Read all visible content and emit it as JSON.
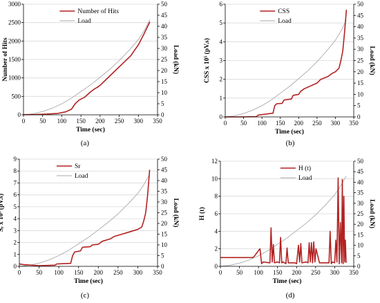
{
  "chart_data": [
    {
      "type": "line",
      "panel_label": "(a)",
      "xlabel": "Time (sec)",
      "ylabel": "Number of Hits",
      "ylabel2": "Load (kN)",
      "xlim": [
        0,
        350
      ],
      "ylim": [
        0,
        3000
      ],
      "ylim2": [
        0,
        50
      ],
      "xticks": [
        0,
        50,
        100,
        150,
        200,
        250,
        300,
        350
      ],
      "yticks": [
        0,
        500,
        1000,
        1500,
        2000,
        2500,
        3000
      ],
      "y2ticks": [
        0,
        5,
        10,
        15,
        20,
        25,
        30,
        35,
        40,
        45,
        50
      ],
      "legend_position": "top-left",
      "series": [
        {
          "name": "Number of Hits",
          "color": "#b22222",
          "axis": "left",
          "x": [
            0,
            30,
            60,
            90,
            110,
            125,
            135,
            145,
            160,
            175,
            185,
            195,
            200,
            210,
            225,
            240,
            260,
            280,
            300,
            315,
            330
          ],
          "y": [
            5,
            10,
            20,
            40,
            80,
            150,
            300,
            400,
            480,
            620,
            700,
            760,
            800,
            900,
            1050,
            1200,
            1400,
            1600,
            1900,
            2200,
            2520
          ]
        },
        {
          "name": "Load",
          "color": "#aaaaaa",
          "axis": "right",
          "x": [
            0,
            25,
            50,
            75,
            100,
            125,
            150,
            175,
            200,
            225,
            250,
            275,
            300,
            315,
            330
          ],
          "y": [
            0,
            0.5,
            1.5,
            3,
            5,
            7.5,
            10.5,
            13.5,
            17,
            20.5,
            24.5,
            29,
            34,
            38,
            43
          ]
        }
      ]
    },
    {
      "type": "line",
      "panel_label": "(b)",
      "xlabel": "Time (sec)",
      "ylabel": "CSS x 10⁵ (pV.s)",
      "ylabel2": "Load (kN)",
      "xlim": [
        0,
        350
      ],
      "ylim": [
        0,
        6
      ],
      "ylim2": [
        0,
        50
      ],
      "xticks": [
        0,
        50,
        100,
        150,
        200,
        250,
        300,
        350
      ],
      "yticks": [
        0,
        1,
        2,
        3,
        4,
        5,
        6
      ],
      "y2ticks": [
        0,
        5,
        10,
        15,
        20,
        25,
        30,
        35,
        40,
        45,
        50
      ],
      "legend_position": "top-left",
      "series": [
        {
          "name": "CSS",
          "color": "#b22222",
          "axis": "left",
          "x": [
            0,
            50,
            85,
            90,
            130,
            135,
            140,
            155,
            160,
            180,
            185,
            200,
            205,
            215,
            250,
            260,
            280,
            290,
            300,
            310,
            315,
            320,
            325,
            330
          ],
          "y": [
            0,
            0,
            0.02,
            0.1,
            0.2,
            0.6,
            0.7,
            0.72,
            0.9,
            0.95,
            1.15,
            1.2,
            1.35,
            1.5,
            1.8,
            2.0,
            2.15,
            2.3,
            2.4,
            2.6,
            3.0,
            3.5,
            4.5,
            5.7
          ]
        },
        {
          "name": "Load",
          "color": "#aaaaaa",
          "axis": "right",
          "x": [
            0,
            25,
            50,
            75,
            100,
            125,
            150,
            175,
            200,
            225,
            250,
            275,
            300,
            315,
            330
          ],
          "y": [
            0,
            0.5,
            1.5,
            3,
            5,
            7.5,
            10.5,
            13.5,
            17,
            20.5,
            24.5,
            29,
            34,
            38,
            43
          ]
        }
      ]
    },
    {
      "type": "line",
      "panel_label": "(c)",
      "xlabel": "Time (sec)",
      "ylabel": "Sᵣ x 10⁵ (pV.s)",
      "ylabel2": "Load (kN)",
      "xlim": [
        0,
        350
      ],
      "ylim": [
        0,
        9
      ],
      "ylim2": [
        0,
        50
      ],
      "xticks": [
        0,
        50,
        100,
        150,
        200,
        250,
        300,
        350
      ],
      "yticks": [
        0,
        1,
        2,
        3,
        4,
        5,
        6,
        7,
        8,
        9
      ],
      "y2ticks": [
        0,
        5,
        10,
        15,
        20,
        25,
        30,
        35,
        40,
        45,
        50
      ],
      "legend_position": "top-left",
      "series": [
        {
          "name": "Sr",
          "color": "#b22222",
          "axis": "left",
          "x": [
            0,
            10,
            30,
            50,
            90,
            95,
            130,
            135,
            140,
            155,
            160,
            180,
            185,
            200,
            210,
            230,
            240,
            260,
            270,
            290,
            300,
            310,
            315,
            320,
            325,
            330
          ],
          "y": [
            0.2,
            0.15,
            0.1,
            0.05,
            0.1,
            0.2,
            0.25,
            0.9,
            1.2,
            1.3,
            1.6,
            1.65,
            1.8,
            1.85,
            2.1,
            2.3,
            2.5,
            2.7,
            2.8,
            3.0,
            3.1,
            3.3,
            3.8,
            4.5,
            6.0,
            8.1
          ]
        },
        {
          "name": "Load",
          "color": "#aaaaaa",
          "axis": "right",
          "x": [
            0,
            25,
            50,
            75,
            100,
            125,
            150,
            175,
            200,
            225,
            250,
            275,
            300,
            315,
            330
          ],
          "y": [
            0,
            0.5,
            1.5,
            3,
            5,
            7.5,
            10.5,
            13.5,
            17,
            20.5,
            24.5,
            29,
            34,
            38,
            43
          ]
        }
      ]
    },
    {
      "type": "line",
      "panel_label": "(d)",
      "xlabel": "Time (sec)",
      "ylabel": "H (t)",
      "ylabel2": "Load (kN)",
      "xlim": [
        0,
        350
      ],
      "ylim": [
        0,
        12
      ],
      "ylim2": [
        0,
        50
      ],
      "xticks": [
        0,
        50,
        100,
        150,
        200,
        250,
        300,
        350
      ],
      "yticks": [
        0,
        2,
        4,
        6,
        8,
        10,
        12
      ],
      "y2ticks": [
        0,
        5,
        10,
        15,
        20,
        25,
        30,
        35,
        40,
        45,
        50
      ],
      "legend_position": "top-right",
      "series": [
        {
          "name": "H (t)",
          "color": "#b22222",
          "axis": "left",
          "x": [
            0,
            85,
            90,
            95,
            100,
            104,
            108,
            112,
            130,
            133,
            136,
            139,
            142,
            150,
            155,
            158,
            161,
            165,
            172,
            175,
            178,
            195,
            200,
            205,
            208,
            211,
            214,
            225,
            230,
            233,
            236,
            239,
            242,
            245,
            248,
            251,
            260,
            285,
            288,
            291,
            294,
            300,
            303,
            306,
            309,
            312,
            315,
            318,
            320,
            322,
            324,
            326,
            328,
            330
          ],
          "y": [
            1,
            1,
            1.2,
            1.5,
            1.8,
            2.0,
            0.3,
            0.5,
            0.4,
            4.4,
            0.5,
            2.5,
            0.4,
            0.5,
            0.4,
            3.3,
            0.4,
            0.5,
            0.3,
            2.1,
            0.4,
            0.4,
            0.3,
            2.4,
            0.5,
            2.6,
            0.4,
            0.5,
            0.4,
            2.7,
            0.5,
            2.7,
            0.4,
            2.8,
            0.5,
            2.0,
            0.4,
            0.4,
            4.0,
            0.3,
            0.5,
            0.4,
            3.0,
            0.5,
            10.1,
            0.3,
            5.0,
            0.4,
            9.9,
            0.3,
            8.0,
            0.5,
            3.0,
            0.4
          ]
        },
        {
          "name": "Load",
          "color": "#aaaaaa",
          "axis": "right",
          "x": [
            0,
            25,
            50,
            75,
            100,
            125,
            150,
            175,
            200,
            225,
            250,
            275,
            300,
            315,
            330
          ],
          "y": [
            0,
            0.5,
            1.5,
            3,
            5,
            7.5,
            10.5,
            13.5,
            17,
            20.5,
            24.5,
            29,
            34,
            38,
            43
          ]
        }
      ]
    }
  ]
}
